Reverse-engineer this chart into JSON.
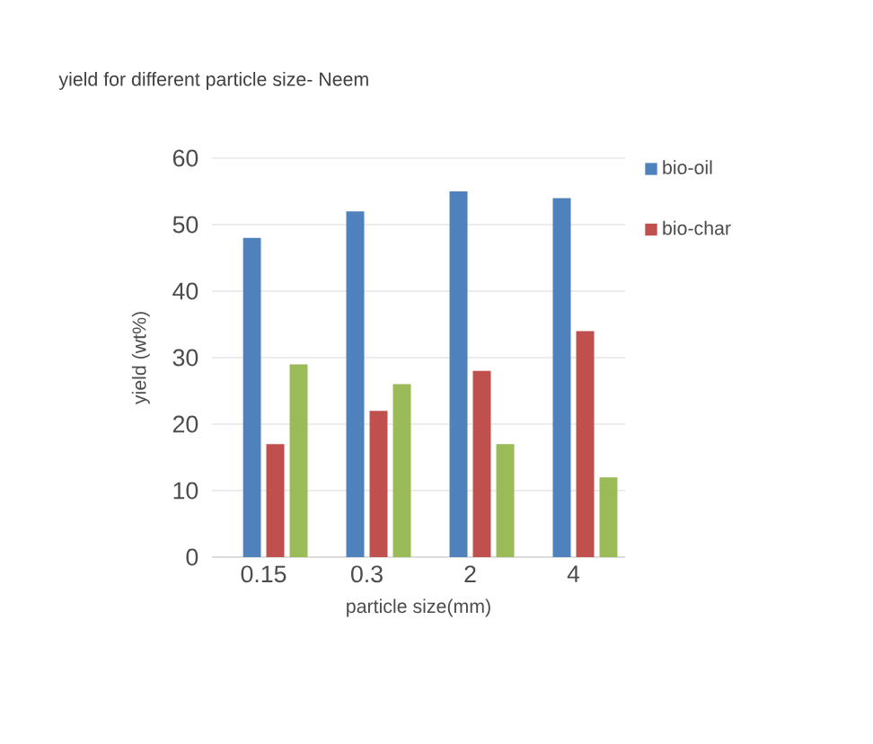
{
  "chart_data": {
    "type": "bar",
    "title": "yield for different particle size- Neem",
    "xlabel": "particle size(mm)",
    "ylabel": "yield (wt%)",
    "categories": [
      "0.15",
      "0.3",
      "2",
      "4"
    ],
    "series": [
      {
        "name": "bio-oil",
        "color": "#4f81bd",
        "values": [
          48,
          52,
          55,
          54
        ]
      },
      {
        "name": "bio-char",
        "color": "#c0504d",
        "values": [
          17,
          22,
          28,
          34
        ]
      },
      {
        "color": "#9bbb59",
        "values": [
          29,
          26,
          17,
          12
        ]
      }
    ],
    "ylim": [
      0,
      60
    ],
    "yticks": [
      0,
      10,
      20,
      30,
      40,
      50,
      60
    ],
    "grid": "y",
    "legend": "top right"
  }
}
